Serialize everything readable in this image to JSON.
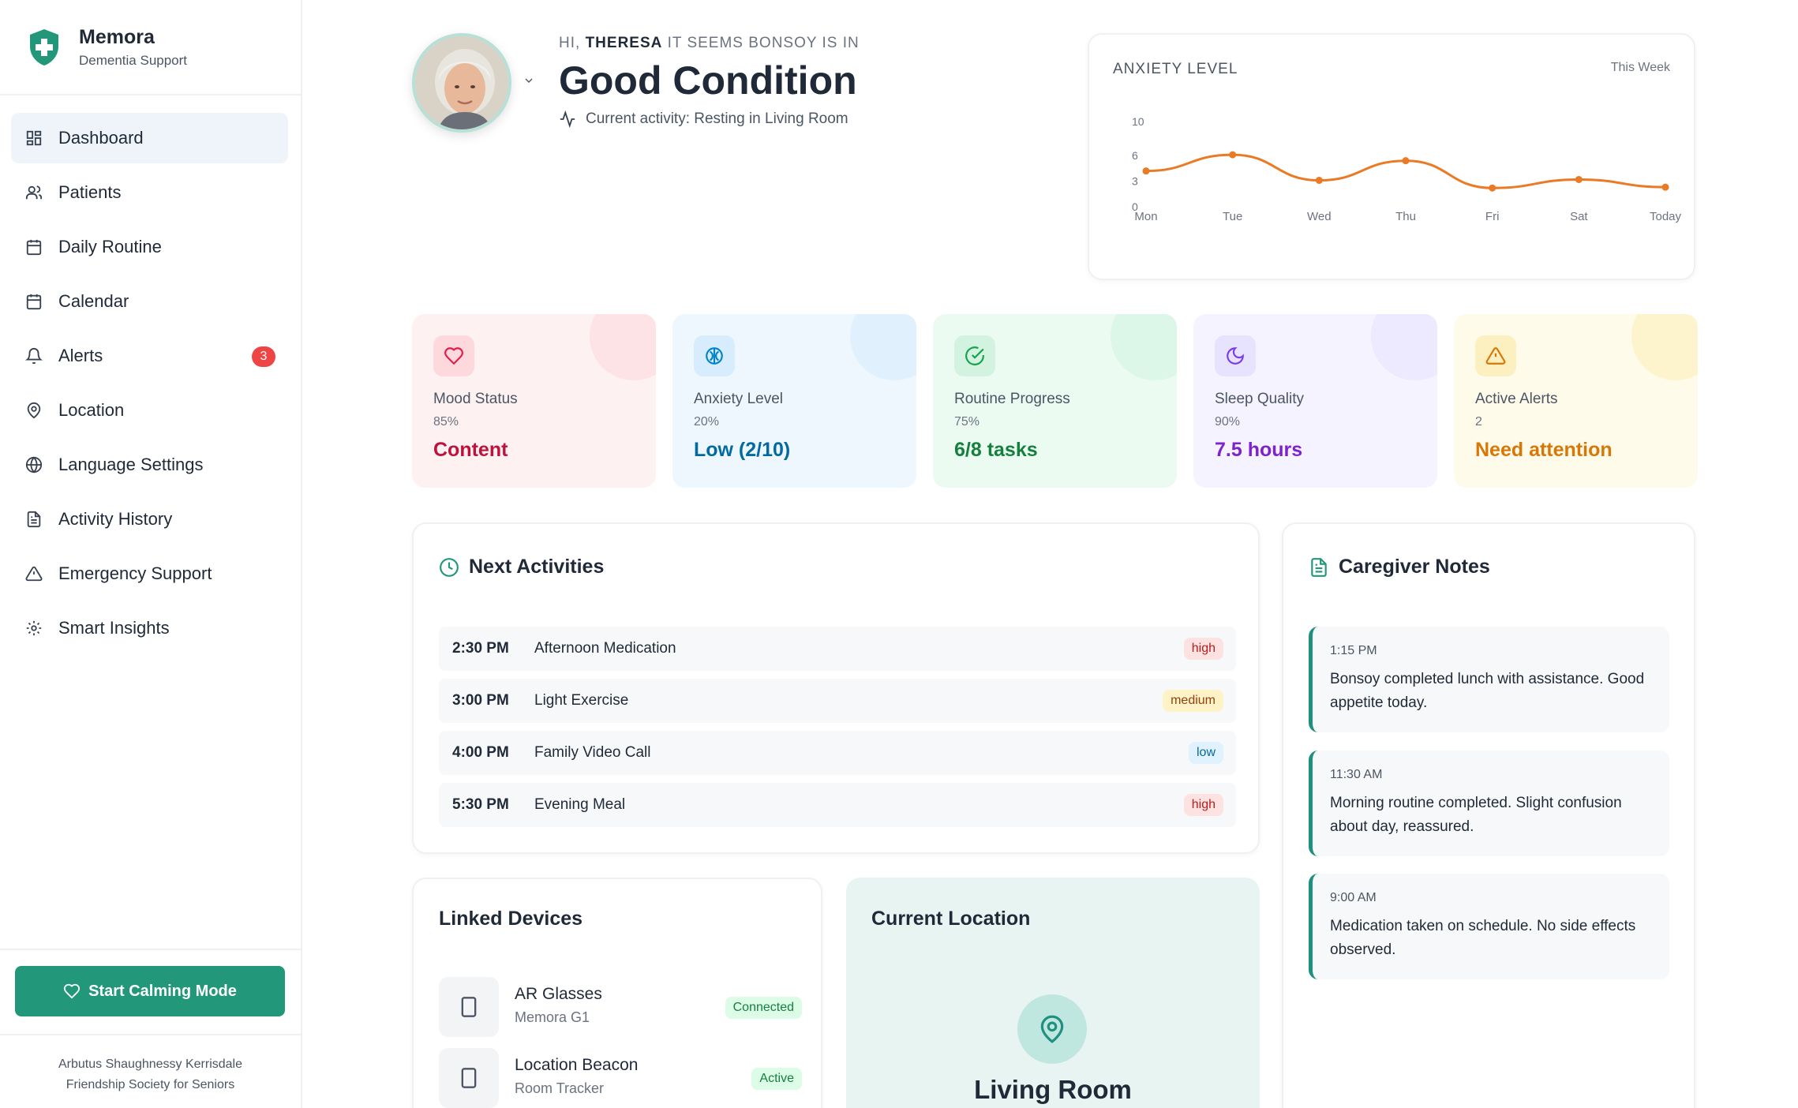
{
  "brand": {
    "name": "Memora",
    "subtitle": "Dementia Support",
    "logo_icon": "shield-plus-icon"
  },
  "nav": [
    {
      "label": "Dashboard",
      "icon": "grid-icon",
      "active": true
    },
    {
      "label": "Patients",
      "icon": "users-icon"
    },
    {
      "label": "Daily Routine",
      "icon": "calendar-icon"
    },
    {
      "label": "Calendar",
      "icon": "calendar-days-icon"
    },
    {
      "label": "Alerts",
      "icon": "bell-icon",
      "badge": "3"
    },
    {
      "label": "Location",
      "icon": "map-pin-icon"
    },
    {
      "label": "Language Settings",
      "icon": "globe-icon"
    },
    {
      "label": "Activity History",
      "icon": "file-text-icon"
    },
    {
      "label": "Emergency Support",
      "icon": "alert-triangle-icon"
    },
    {
      "label": "Smart Insights",
      "icon": "settings-icon"
    }
  ],
  "calm_button": "Start Calming Mode",
  "org_line1": "Arbutus Shaughnessy Kerrisdale",
  "org_line2": "Friendship Society for Seniors",
  "header": {
    "greet_prefix": "HI,",
    "user": "THERESA",
    "greet_suffix": "IT SEEMS BONSOY IS IN",
    "condition": "Good Condition",
    "activity": "Current activity: Resting in Living Room"
  },
  "chart_data": {
    "type": "line",
    "title": "ANXIETY LEVEL",
    "period": "This Week",
    "categories": [
      "Mon",
      "Tue",
      "Wed",
      "Thu",
      "Fri",
      "Sat",
      "Today"
    ],
    "values": [
      4.2,
      6.1,
      3.1,
      5.4,
      2.2,
      3.2,
      2.3
    ],
    "yticks": [
      0,
      3,
      6,
      10
    ],
    "ylim": [
      0,
      10
    ],
    "color": "#ea7a23"
  },
  "stats": [
    {
      "label": "Mood Status",
      "pct": "85%",
      "value": "Content",
      "icon": "heart-icon",
      "bg": "#fef1f2",
      "deco": "#fde3e6",
      "icoBg": "#fdd9dd",
      "stroke": "#e11d48",
      "valColor": "#be123c"
    },
    {
      "label": "Anxiety Level",
      "pct": "20%",
      "value": "Low (2/10)",
      "icon": "brain-icon",
      "bg": "#eef7fe",
      "deco": "#e0f0fd",
      "icoBg": "#d7ecfc",
      "stroke": "#0284c7",
      "valColor": "#0369a1"
    },
    {
      "label": "Routine Progress",
      "pct": "75%",
      "value": "6/8 tasks",
      "icon": "check-circle-icon",
      "bg": "#ecfbf2",
      "deco": "#dcf7e7",
      "icoBg": "#d2f3e0",
      "stroke": "#16a34a",
      "valColor": "#15803d"
    },
    {
      "label": "Sleep Quality",
      "pct": "90%",
      "value": "7.5 hours",
      "icon": "moon-icon",
      "bg": "#f5f3ff",
      "deco": "#ede9fe",
      "icoBg": "#e7e2fd",
      "stroke": "#7c3aed",
      "valColor": "#7e22ce"
    },
    {
      "label": "Active Alerts",
      "pct": "2",
      "value": "Need attention",
      "icon": "alert-triangle-icon",
      "bg": "#fefbea",
      "deco": "#fdf3cc",
      "icoBg": "#fcefc0",
      "stroke": "#d97706",
      "valColor": "#d97706"
    }
  ],
  "next_activities": {
    "title": "Next Activities",
    "items": [
      {
        "time": "2:30 PM",
        "name": "Afternoon Medication",
        "priority": "high"
      },
      {
        "time": "3:00 PM",
        "name": "Light Exercise",
        "priority": "medium"
      },
      {
        "time": "4:00 PM",
        "name": "Family Video Call",
        "priority": "low"
      },
      {
        "time": "5:30 PM",
        "name": "Evening Meal",
        "priority": "high"
      }
    ]
  },
  "caregiver_notes": {
    "title": "Caregiver Notes",
    "items": [
      {
        "time": "1:15 PM",
        "text": "Bonsoy completed lunch with assistance. Good appetite today."
      },
      {
        "time": "11:30 AM",
        "text": "Morning routine completed. Slight confusion about day, reassured."
      },
      {
        "time": "9:00 AM",
        "text": "Medication taken on schedule. No side effects observed."
      }
    ]
  },
  "linked_devices": {
    "title": "Linked Devices",
    "items": [
      {
        "name": "AR Glasses",
        "model": "Memora G1",
        "status": "Connected"
      },
      {
        "name": "Location Beacon",
        "model": "Room Tracker",
        "status": "Active"
      }
    ]
  },
  "current_location": {
    "title": "Current Location",
    "place": "Living Room"
  }
}
